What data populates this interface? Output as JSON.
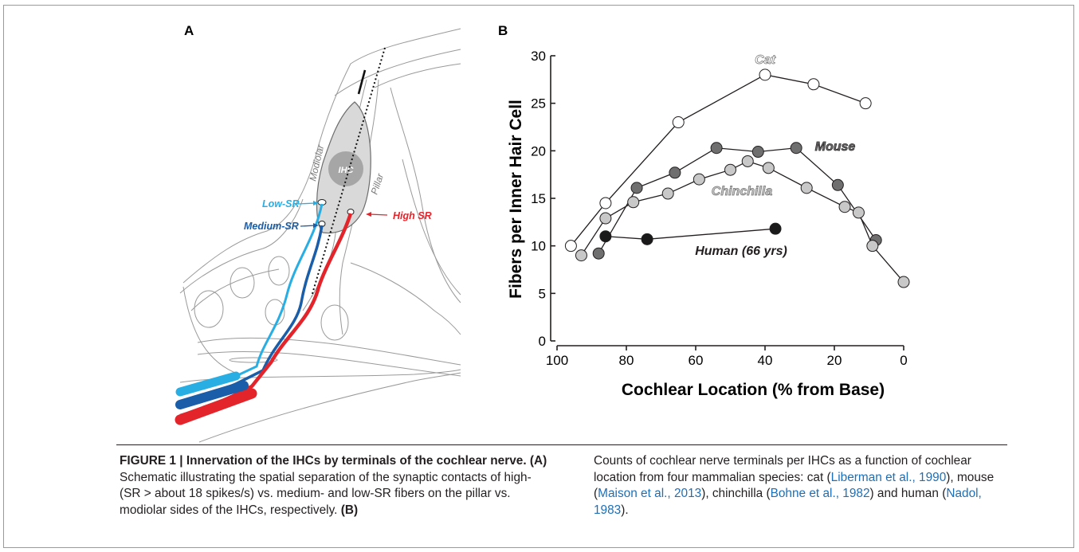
{
  "panel_a": {
    "letter": "A",
    "labels": {
      "ihc": "IHC",
      "modiolar": "Modiolar",
      "pillar": "Pillar",
      "low_sr": "Low-SR",
      "medium_sr": "Medium-SR",
      "high_sr": "High SR"
    },
    "colors": {
      "low_sr": "#29aee3",
      "medium_sr": "#1a5da8",
      "high_sr": "#e3242b"
    }
  },
  "panel_b": {
    "letter": "B"
  },
  "chart_data": {
    "type": "line",
    "xlabel": "Cochlear Location (% from Base)",
    "ylabel": "Fibers per Inner Hair Cell",
    "xlim": [
      100,
      0
    ],
    "ylim": [
      0,
      30
    ],
    "x_ticks": [
      "100",
      "80",
      "60",
      "40",
      "20",
      "0"
    ],
    "y_ticks": [
      "0",
      "5",
      "10",
      "15",
      "20",
      "25",
      "30"
    ],
    "grid": false,
    "series": [
      {
        "name": "Cat",
        "marker_fill": "#ffffff",
        "x": [
          96,
          86,
          65,
          40,
          26,
          11
        ],
        "y": [
          10,
          14.5,
          23,
          28,
          27,
          25
        ]
      },
      {
        "name": "Mouse",
        "marker_fill": "#6f6f6f",
        "x": [
          88,
          77,
          66,
          54,
          42,
          31,
          19,
          8
        ],
        "y": [
          9.2,
          16.1,
          17.7,
          20.3,
          19.9,
          20.3,
          16.4,
          10.6
        ]
      },
      {
        "name": "Chinchilla",
        "marker_fill": "#c8c8c8",
        "x": [
          93,
          86,
          78,
          68,
          59,
          50,
          45,
          39,
          28,
          17,
          13,
          9,
          0
        ],
        "y": [
          9,
          12.9,
          14.6,
          15.5,
          17,
          18,
          18.9,
          18.2,
          16.1,
          14.1,
          13.5,
          10,
          6.2
        ]
      },
      {
        "name": "Human (66 yrs)",
        "marker_fill": "#1a1a1a",
        "x": [
          86,
          74,
          37
        ],
        "y": [
          11,
          10.7,
          11.8
        ]
      }
    ]
  },
  "caption": {
    "head": "FIGURE 1 | Innervation of the IHCs by terminals of the cochlear nerve.",
    "a_tag": "(A)",
    "a_text": "Schematic illustrating the spatial separation of the synaptic contacts of high- (SR > about 18 spikes/s) vs. medium- and low-SR fibers on the pillar vs. modiolar sides of the IHCs, respectively.",
    "b_tag": "(B)",
    "b_text_1": "Counts of cochlear nerve terminals per IHCs as a function of cochlear location from four mammalian species: cat (",
    "cite_1": "Liberman et al., 1990",
    "b_text_2": "), mouse (",
    "cite_2": "Maison et al., 2013",
    "b_text_3": "), chinchilla (",
    "cite_3": "Bohne et al., 1982",
    "b_text_4": ") and human (",
    "cite_4": "Nadol, 1983",
    "b_text_5": ")."
  }
}
